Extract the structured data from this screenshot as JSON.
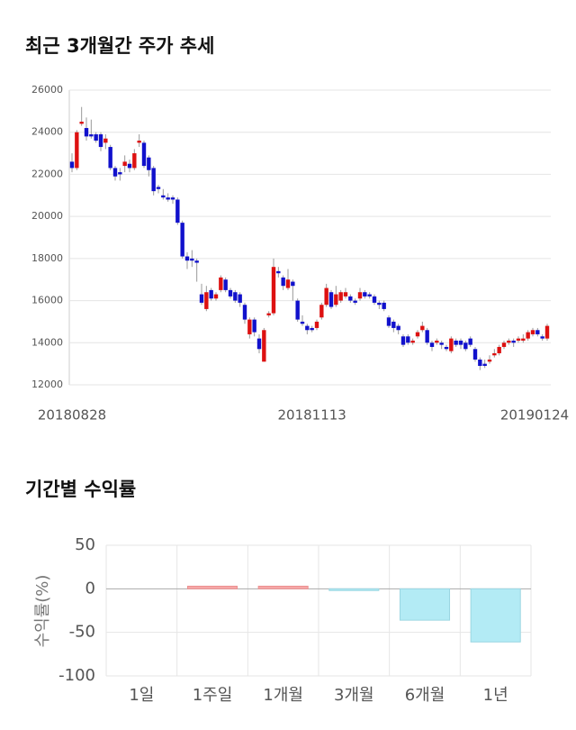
{
  "chart_data": [
    {
      "type": "candlestick",
      "title": "최근 3개월간 주가 추세",
      "categories": [
        "20180828",
        null,
        null,
        null,
        null,
        null,
        null,
        null,
        null,
        null,
        null,
        null,
        null,
        null,
        null,
        null,
        null,
        null,
        null,
        null,
        null,
        null,
        null,
        null,
        null,
        null,
        null,
        null,
        null,
        null,
        null,
        null,
        null,
        null,
        null,
        null,
        null,
        null,
        null,
        null,
        null,
        null,
        null,
        null,
        null,
        null,
        null,
        null,
        null,
        null,
        "20181113",
        null,
        null,
        null,
        null,
        null,
        null,
        null,
        null,
        null,
        null,
        null,
        null,
        null,
        null,
        null,
        null,
        null,
        null,
        null,
        null,
        null,
        null,
        null,
        null,
        null,
        null,
        null,
        null,
        null,
        null,
        null,
        null,
        null,
        null,
        null,
        null,
        null,
        null,
        null,
        null,
        null,
        null,
        null,
        null,
        null,
        null,
        null,
        null,
        "20190124"
      ],
      "open": [
        22600,
        22300,
        24400,
        24200,
        23900,
        23900,
        23900,
        23500,
        23300,
        22300,
        22100,
        22400,
        22500,
        22300,
        23500,
        23500,
        22800,
        22300,
        21400,
        21000,
        20900,
        20900,
        20800,
        19700,
        18100,
        18000,
        17900,
        16300,
        15600,
        16500,
        16100,
        16500,
        17000,
        16500,
        16400,
        16300,
        15800,
        14400,
        15100,
        14200,
        13100,
        15300,
        15400,
        17400,
        17100,
        16600,
        16900,
        16000,
        15000,
        14800,
        14700,
        14700,
        15200,
        15800,
        16400,
        15800,
        16000,
        16200,
        16200,
        16000,
        16100,
        16400,
        16300,
        16200,
        15900,
        15900,
        15200,
        15000,
        14800,
        14300,
        14300,
        14000,
        14300,
        14600,
        14600,
        14000,
        14000,
        14000,
        13800,
        13600,
        14100,
        14100,
        14000,
        14200,
        13700,
        13200,
        13000,
        13100,
        13400,
        13500,
        13800,
        14000,
        14100,
        14100,
        14100,
        14200,
        14400,
        14600,
        14300,
        14200
      ],
      "high": [
        23000,
        24100,
        25200,
        24700,
        24600,
        24000,
        24000,
        23900,
        23400,
        22400,
        22300,
        22900,
        22700,
        23200,
        23900,
        23600,
        22900,
        22400,
        21500,
        21300,
        21100,
        21000,
        20900,
        19800,
        18300,
        18400,
        18000,
        16800,
        16700,
        16600,
        16400,
        17200,
        17100,
        16600,
        16500,
        16400,
        15900,
        15200,
        15200,
        14400,
        14700,
        15500,
        18000,
        17600,
        17200,
        17500,
        17000,
        16100,
        15300,
        14900,
        14800,
        15100,
        15900,
        16800,
        16500,
        16700,
        16500,
        16600,
        16300,
        16100,
        16600,
        16500,
        16400,
        16300,
        16000,
        16000,
        15300,
        15100,
        14900,
        14400,
        14400,
        14200,
        14600,
        15000,
        14700,
        14100,
        14200,
        14100,
        13900,
        14300,
        14200,
        14200,
        14100,
        14300,
        13800,
        13300,
        13200,
        13400,
        13700,
        13900,
        14100,
        14200,
        14200,
        14300,
        14400,
        14600,
        14700,
        14700,
        14400,
        14900
      ],
      "low": [
        22100,
        22200,
        24300,
        23600,
        23700,
        23500,
        23100,
        23200,
        22200,
        21700,
        21700,
        22100,
        22100,
        22200,
        23300,
        22300,
        21900,
        21000,
        21100,
        20800,
        20700,
        20600,
        19600,
        18000,
        17500,
        17600,
        16900,
        15800,
        15500,
        16000,
        16000,
        16400,
        16400,
        16100,
        15900,
        15700,
        14900,
        14200,
        14300,
        13500,
        13100,
        15200,
        15300,
        17100,
        16500,
        16500,
        16000,
        15000,
        14800,
        14400,
        14500,
        14600,
        15100,
        15700,
        15600,
        15700,
        15900,
        16100,
        15900,
        15800,
        16000,
        16100,
        16100,
        15800,
        15600,
        15500,
        14700,
        14500,
        14400,
        13800,
        13900,
        13900,
        14200,
        14500,
        13900,
        13600,
        13900,
        13700,
        13600,
        13500,
        13800,
        13700,
        13600,
        13800,
        13100,
        12700,
        12800,
        13000,
        13300,
        13400,
        13700,
        13900,
        13800,
        14000,
        14000,
        14100,
        14300,
        14300,
        14100,
        14100
      ],
      "close": [
        22300,
        24000,
        24500,
        23800,
        23800,
        23600,
        23300,
        23700,
        22300,
        21900,
        22000,
        22600,
        22300,
        23000,
        23600,
        22400,
        22200,
        21200,
        21300,
        20900,
        20800,
        20800,
        19700,
        18100,
        17900,
        17900,
        17800,
        15900,
        16400,
        16100,
        16300,
        17100,
        16500,
        16200,
        16000,
        15900,
        15100,
        15100,
        14500,
        13700,
        14600,
        15400,
        17600,
        17300,
        16700,
        17000,
        16700,
        15100,
        14900,
        14600,
        14600,
        15000,
        15800,
        16600,
        15700,
        16300,
        16400,
        16400,
        16000,
        15900,
        16400,
        16200,
        16200,
        15900,
        15800,
        15600,
        14800,
        14700,
        14600,
        13900,
        14000,
        14100,
        14500,
        14800,
        14000,
        13800,
        14100,
        13900,
        13700,
        14200,
        13900,
        13900,
        13700,
        13900,
        13200,
        12900,
        12900,
        13200,
        13500,
        13800,
        14000,
        14100,
        14000,
        14200,
        14200,
        14500,
        14600,
        14400,
        14200,
        14800
      ],
      "up_color": "#dd1111",
      "down_color": "#1111cc",
      "ylim": [
        12000,
        26000
      ],
      "yticks": [
        12000,
        14000,
        16000,
        18000,
        20000,
        22000,
        24000,
        26000
      ],
      "grid": true
    },
    {
      "type": "bar",
      "title": "기간별 수익률",
      "y_label": "수익률(%)",
      "categories": [
        "1일",
        "1주일",
        "1개월",
        "3개월",
        "6개월",
        "1년"
      ],
      "values": [
        0,
        3,
        3,
        -2,
        -36,
        -61
      ],
      "positive_color": "#f7a8a8",
      "negative_color": "#b3ebf5",
      "ylim": [
        -100,
        50
      ],
      "yticks": [
        -100,
        -50,
        0,
        50
      ],
      "grid": true
    }
  ]
}
